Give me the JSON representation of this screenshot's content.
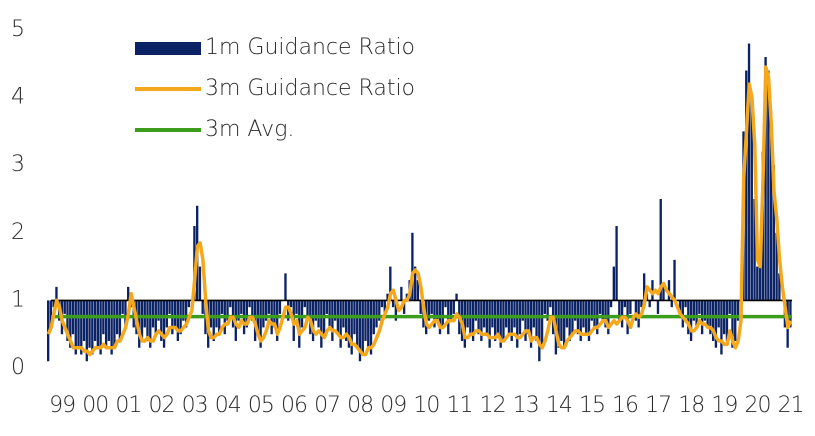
{
  "chart_data": {
    "type": "bar_line",
    "categories": [
      null,
      null,
      null,
      null,
      null,
      "99",
      null,
      null,
      null,
      null,
      null,
      null,
      null,
      null,
      null,
      null,
      null,
      "00",
      null,
      null,
      null,
      null,
      null,
      null,
      null,
      null,
      null,
      null,
      null,
      "01",
      null,
      null,
      null,
      null,
      null,
      null,
      null,
      null,
      null,
      null,
      null,
      "02",
      null,
      null,
      null,
      null,
      null,
      null,
      null,
      null,
      null,
      null,
      null,
      "03",
      null,
      null,
      null,
      null,
      null,
      null,
      null,
      null,
      null,
      null,
      null,
      "04",
      null,
      null,
      null,
      null,
      null,
      null,
      null,
      null,
      null,
      null,
      null,
      "05",
      null,
      null,
      null,
      null,
      null,
      null,
      null,
      null,
      null,
      null,
      null,
      "06",
      null,
      null,
      null,
      null,
      null,
      null,
      null,
      null,
      null,
      null,
      null,
      "07",
      null,
      null,
      null,
      null,
      null,
      null,
      null,
      null,
      null,
      null,
      null,
      "08",
      null,
      null,
      null,
      null,
      null,
      null,
      null,
      null,
      null,
      null,
      null,
      "09",
      null,
      null,
      null,
      null,
      null,
      null,
      null,
      null,
      null,
      null,
      null,
      "10",
      null,
      null,
      null,
      null,
      null,
      null,
      null,
      null,
      null,
      null,
      null,
      "11",
      null,
      null,
      null,
      null,
      null,
      null,
      null,
      null,
      null,
      null,
      null,
      "12",
      null,
      null,
      null,
      null,
      null,
      null,
      null,
      null,
      null,
      null,
      null,
      "13",
      null,
      null,
      null,
      null,
      null,
      null,
      null,
      null,
      null,
      null,
      null,
      "14",
      null,
      null,
      null,
      null,
      null,
      null,
      null,
      null,
      null,
      null,
      null,
      "15",
      null,
      null,
      null,
      null,
      null,
      null,
      null,
      null,
      null,
      null,
      null,
      "16",
      null,
      null,
      null,
      null,
      null,
      null,
      null,
      null,
      null,
      null,
      null,
      "17",
      null,
      null,
      null,
      null,
      null,
      null,
      null,
      null,
      null,
      null,
      null,
      "18",
      null,
      null,
      null,
      null,
      null,
      null,
      null,
      null,
      null,
      null,
      null,
      "19",
      null,
      null,
      null,
      null,
      null,
      null,
      null,
      null,
      null,
      null,
      null,
      "20",
      null,
      null,
      null,
      null,
      null,
      null,
      null,
      null,
      null,
      null,
      null,
      "21"
    ],
    "series": [
      {
        "name": "1m Guidance Ratio",
        "type": "bar",
        "color": "#0b2265",
        "values": [
          0.1,
          0.6,
          0.9,
          1.2,
          0.7,
          0.5,
          0.8,
          0.4,
          0.3,
          0.5,
          0.2,
          0.3,
          0.2,
          0.4,
          0.1,
          0.3,
          0.2,
          0.4,
          0.3,
          0.2,
          0.5,
          0.3,
          0.4,
          0.2,
          0.3,
          0.5,
          0.4,
          0.8,
          0.6,
          1.2,
          0.9,
          0.6,
          0.5,
          0.3,
          0.4,
          0.6,
          0.4,
          0.3,
          0.6,
          0.5,
          0.7,
          0.4,
          0.3,
          0.6,
          0.8,
          0.5,
          0.6,
          0.4,
          0.5,
          0.7,
          0.6,
          0.9,
          1.0,
          2.1,
          2.4,
          1.5,
          0.8,
          0.5,
          0.3,
          0.6,
          0.4,
          0.6,
          0.5,
          0.8,
          0.5,
          0.7,
          0.9,
          0.6,
          0.4,
          0.7,
          0.8,
          0.5,
          0.6,
          0.9,
          0.7,
          0.4,
          0.5,
          0.3,
          0.6,
          0.7,
          0.8,
          0.5,
          0.6,
          0.4,
          0.8,
          1.0,
          1.4,
          0.7,
          0.9,
          0.4,
          0.8,
          0.3,
          0.6,
          0.9,
          0.7,
          0.5,
          0.4,
          0.7,
          0.6,
          0.3,
          0.5,
          0.8,
          0.6,
          0.4,
          0.7,
          0.5,
          0.3,
          0.6,
          0.4,
          0.3,
          0.2,
          0.5,
          0.3,
          0.1,
          0.2,
          0.4,
          0.3,
          0.2,
          0.5,
          0.6,
          0.7,
          0.9,
          0.8,
          1.1,
          1.5,
          0.9,
          0.7,
          1.0,
          1.2,
          0.8,
          1.1,
          1.3,
          2.0,
          1.5,
          1.3,
          0.8,
          0.6,
          0.5,
          0.7,
          0.8,
          0.6,
          0.7,
          0.5,
          0.6,
          0.9,
          0.5,
          0.7,
          0.8,
          1.1,
          0.5,
          0.4,
          0.3,
          0.6,
          0.5,
          0.4,
          0.7,
          0.5,
          0.4,
          0.6,
          0.5,
          0.3,
          0.6,
          0.4,
          0.5,
          0.3,
          0.4,
          0.6,
          0.5,
          0.4,
          0.6,
          0.3,
          0.5,
          0.7,
          0.4,
          0.5,
          0.3,
          0.6,
          0.4,
          0.1,
          0.3,
          0.8,
          0.7,
          0.9,
          0.5,
          0.2,
          0.3,
          0.4,
          0.3,
          0.6,
          0.4,
          0.5,
          0.7,
          0.5,
          0.4,
          0.6,
          0.5,
          0.4,
          0.7,
          0.6,
          0.5,
          0.8,
          0.7,
          0.6,
          0.5,
          0.9,
          1.5,
          2.1,
          0.7,
          0.6,
          0.9,
          0.5,
          0.8,
          1.0,
          0.7,
          0.6,
          0.9,
          1.4,
          1.1,
          0.9,
          1.3,
          1.0,
          0.8,
          2.5,
          1.2,
          1.0,
          1.3,
          0.9,
          1.6,
          1.0,
          0.8,
          0.6,
          0.9,
          0.5,
          0.4,
          0.7,
          0.6,
          0.8,
          0.5,
          0.7,
          0.6,
          0.5,
          0.4,
          0.3,
          0.6,
          0.2,
          0.5,
          0.4,
          0.8,
          0.3,
          0.4,
          0.7,
          0.9,
          3.5,
          4.4,
          4.8,
          4.0,
          2.5,
          1.5,
          1.6,
          3.2,
          4.6,
          4.4,
          3.8,
          3.0,
          2.0,
          1.4,
          1.0,
          0.6,
          0.3,
          0.6
        ]
      },
      {
        "name": "3m Guidance Ratio",
        "type": "line",
        "color": "#f5a81c",
        "values": [
          0.5,
          0.6,
          0.8,
          1.0,
          0.9,
          0.7,
          0.6,
          0.5,
          0.4,
          0.3,
          0.3,
          0.3,
          0.3,
          0.25,
          0.25,
          0.2,
          0.25,
          0.3,
          0.3,
          0.3,
          0.35,
          0.3,
          0.3,
          0.3,
          0.3,
          0.4,
          0.4,
          0.5,
          0.6,
          0.8,
          1.1,
          0.9,
          0.7,
          0.5,
          0.4,
          0.4,
          0.45,
          0.4,
          0.4,
          0.5,
          0.55,
          0.5,
          0.45,
          0.5,
          0.6,
          0.6,
          0.6,
          0.55,
          0.55,
          0.6,
          0.65,
          0.75,
          0.85,
          1.3,
          1.8,
          1.85,
          1.6,
          1.0,
          0.55,
          0.45,
          0.45,
          0.5,
          0.5,
          0.6,
          0.65,
          0.65,
          0.75,
          0.75,
          0.65,
          0.6,
          0.7,
          0.65,
          0.65,
          0.75,
          0.75,
          0.65,
          0.5,
          0.4,
          0.45,
          0.55,
          0.7,
          0.65,
          0.65,
          0.5,
          0.6,
          0.75,
          0.9,
          0.9,
          0.8,
          0.65,
          0.7,
          0.5,
          0.55,
          0.6,
          0.75,
          0.7,
          0.55,
          0.5,
          0.55,
          0.5,
          0.45,
          0.55,
          0.6,
          0.55,
          0.55,
          0.5,
          0.45,
          0.45,
          0.5,
          0.45,
          0.35,
          0.35,
          0.3,
          0.25,
          0.2,
          0.2,
          0.3,
          0.3,
          0.35,
          0.45,
          0.55,
          0.7,
          0.8,
          0.9,
          1.1,
          1.15,
          1.0,
          0.85,
          0.9,
          1.0,
          1.0,
          1.1,
          1.4,
          1.45,
          1.4,
          1.2,
          0.9,
          0.65,
          0.6,
          0.65,
          0.7,
          0.7,
          0.6,
          0.6,
          0.65,
          0.7,
          0.7,
          0.7,
          0.8,
          0.75,
          0.65,
          0.45,
          0.45,
          0.5,
          0.5,
          0.55,
          0.55,
          0.5,
          0.5,
          0.5,
          0.45,
          0.45,
          0.45,
          0.5,
          0.4,
          0.4,
          0.45,
          0.5,
          0.5,
          0.5,
          0.45,
          0.45,
          0.5,
          0.55,
          0.55,
          0.4,
          0.45,
          0.45,
          0.35,
          0.3,
          0.4,
          0.55,
          0.75,
          0.75,
          0.55,
          0.35,
          0.3,
          0.3,
          0.4,
          0.45,
          0.5,
          0.55,
          0.55,
          0.5,
          0.5,
          0.5,
          0.5,
          0.55,
          0.6,
          0.6,
          0.65,
          0.7,
          0.7,
          0.6,
          0.65,
          0.7,
          0.65,
          0.7,
          0.75,
          0.75,
          0.7,
          0.6,
          0.75,
          0.8,
          0.75,
          0.8,
          0.95,
          1.2,
          1.15,
          1.1,
          1.15,
          1.1,
          1.2,
          1.25,
          1.15,
          1.1,
          1.05,
          1.0,
          0.9,
          0.8,
          0.75,
          0.7,
          0.65,
          0.55,
          0.55,
          0.6,
          0.7,
          0.65,
          0.65,
          0.6,
          0.6,
          0.55,
          0.45,
          0.4,
          0.4,
          0.35,
          0.35,
          0.55,
          0.4,
          0.3,
          0.4,
          0.7,
          2.8,
          3.5,
          4.2,
          4.0,
          3.3,
          1.6,
          1.5,
          2.8,
          4.45,
          4.3,
          3.6,
          2.6,
          2.2,
          1.6,
          1.2,
          0.9,
          0.6,
          0.7
        ]
      }
    ],
    "reference_lines": [
      {
        "name": "3m Avg.",
        "color": "#3c9c1c",
        "value": 0.76
      }
    ],
    "baseline": 1,
    "ylim": [
      0,
      5
    ],
    "yticks": [
      0,
      1,
      2,
      3,
      4,
      5
    ],
    "grid": false,
    "legend": "upper left"
  }
}
